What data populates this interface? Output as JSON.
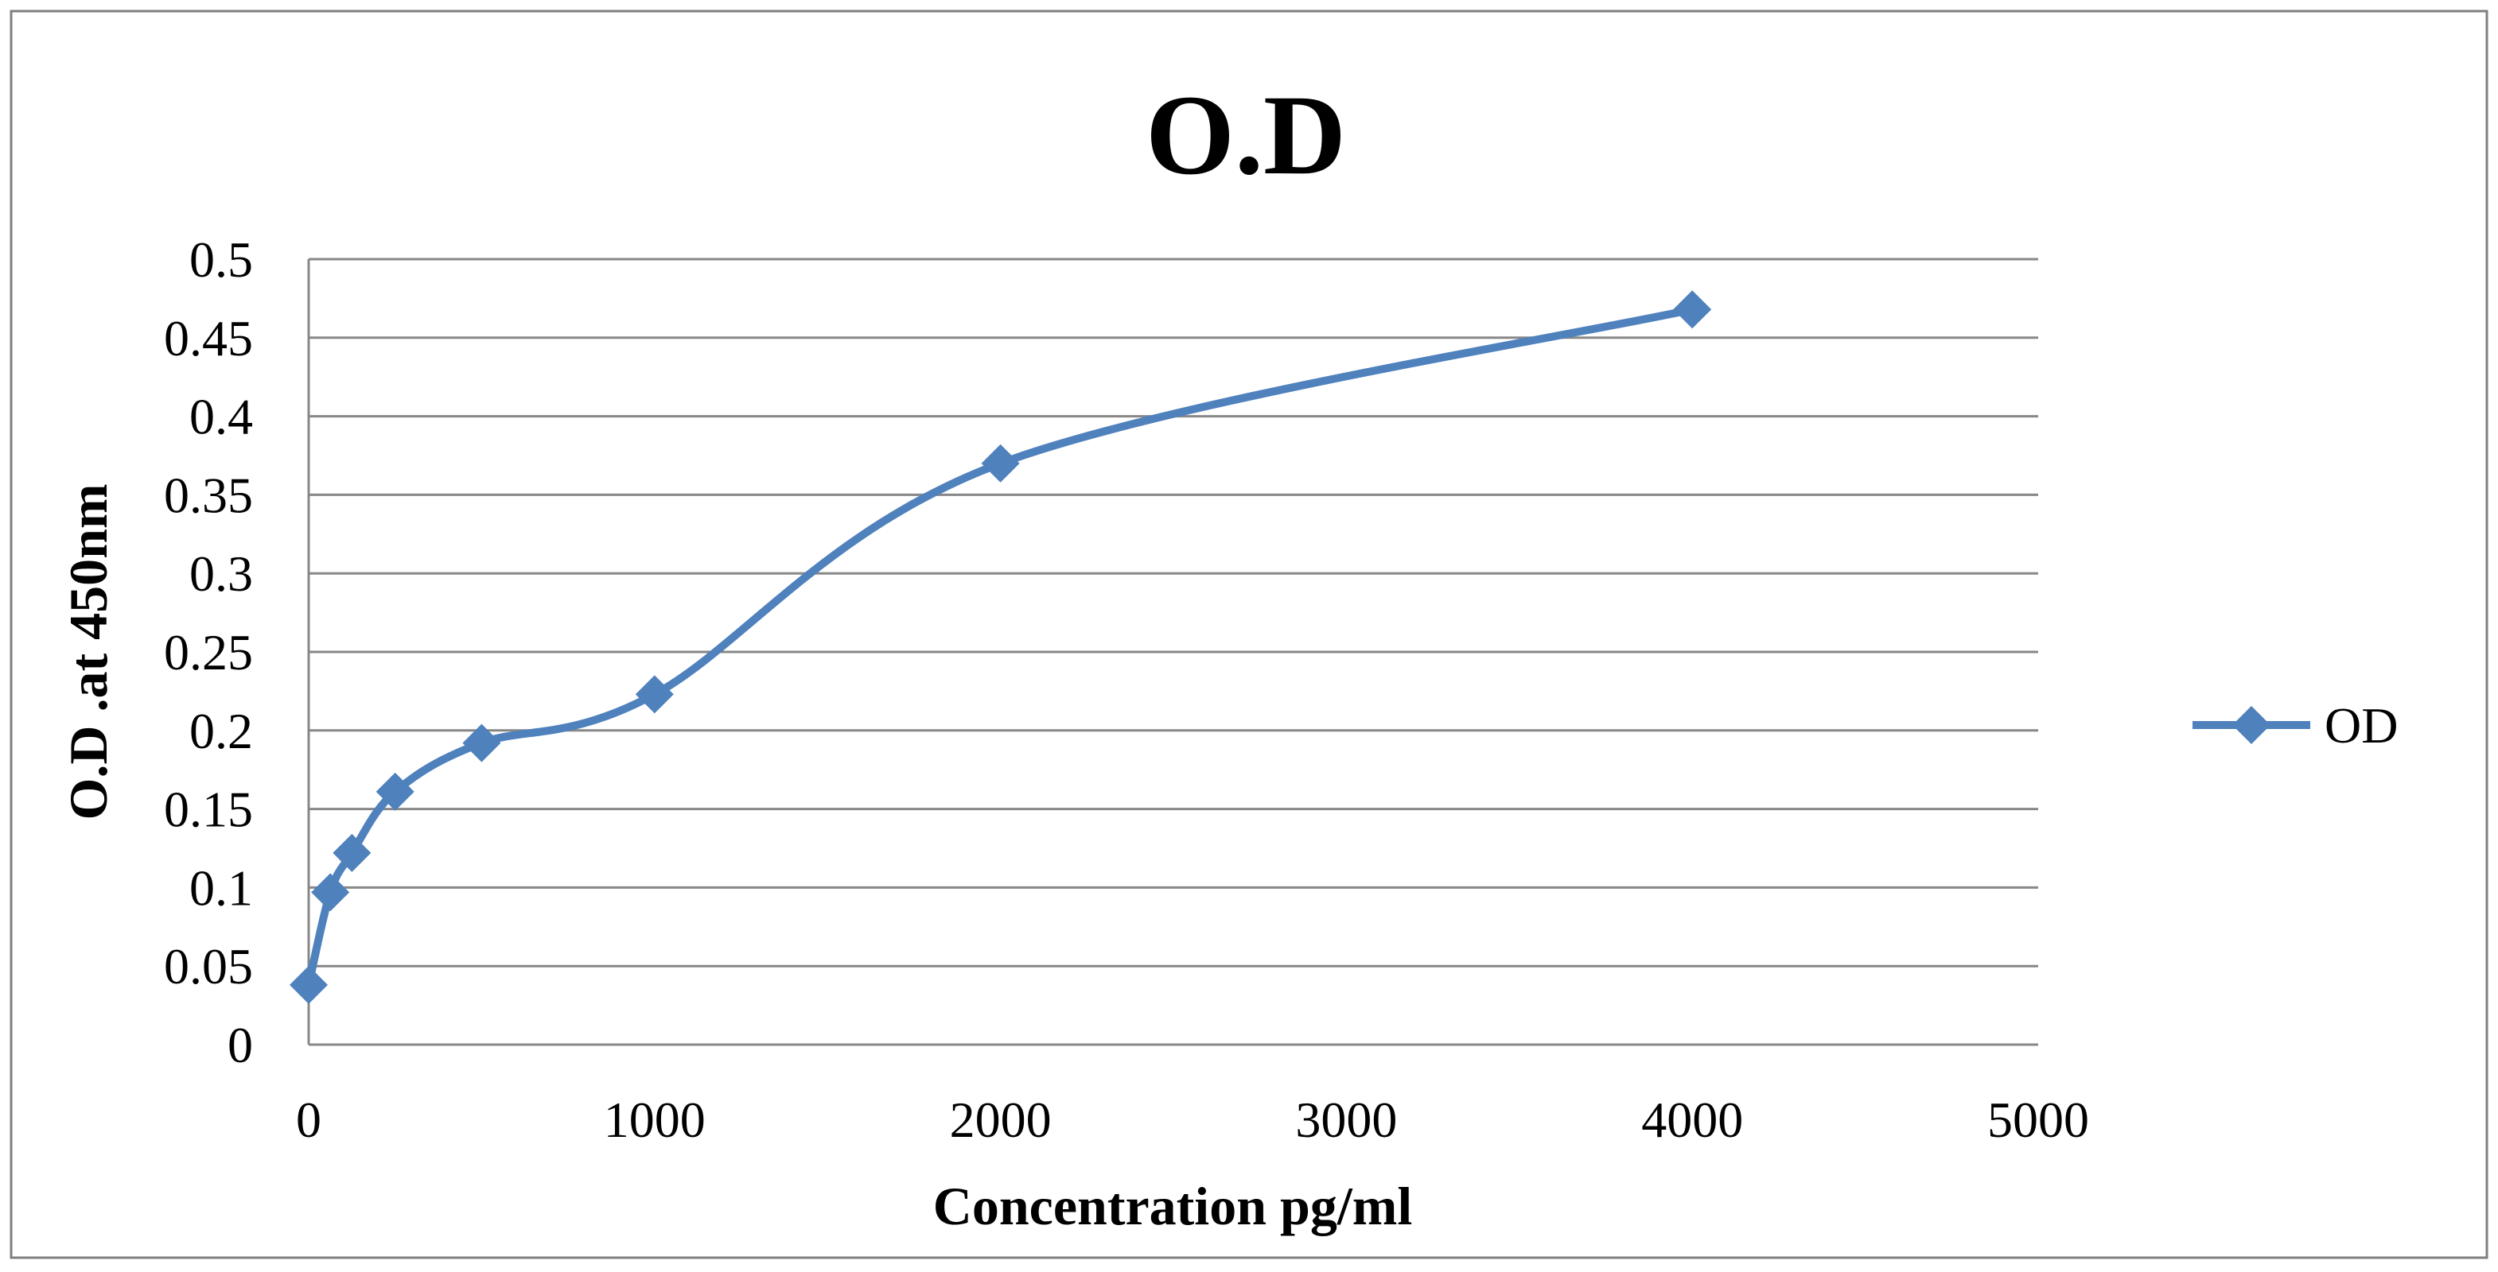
{
  "chart_data": {
    "type": "line",
    "title": "O.D",
    "xlabel": "Concentration  pg/ml",
    "ylabel": "O.D .at 450nm",
    "xlim": [
      0,
      5000
    ],
    "ylim": [
      0,
      0.5
    ],
    "x_ticks": [
      0,
      1000,
      2000,
      3000,
      4000,
      5000
    ],
    "x_tick_labels": [
      "0",
      "1000",
      "2000",
      "3000",
      "4000",
      "5000"
    ],
    "y_ticks": [
      0,
      0.05,
      0.1,
      0.15,
      0.2,
      0.25,
      0.3,
      0.35,
      0.4,
      0.45,
      0.5
    ],
    "y_tick_labels": [
      "0",
      "0.05",
      "0.1",
      "0.15",
      "0.2",
      "0.25",
      "0.3",
      "0.35",
      "0.4",
      "0.45",
      "0.5"
    ],
    "grid": true,
    "smooth": true,
    "legend_position": "right",
    "series": [
      {
        "name": "OD",
        "color": "#4f81bd",
        "marker": "diamond",
        "x": [
          0,
          62.5,
          125,
          250,
          500,
          1000,
          2000,
          4000
        ],
        "y": [
          0.038,
          0.097,
          0.122,
          0.161,
          0.192,
          0.223,
          0.37,
          0.468
        ]
      }
    ]
  }
}
